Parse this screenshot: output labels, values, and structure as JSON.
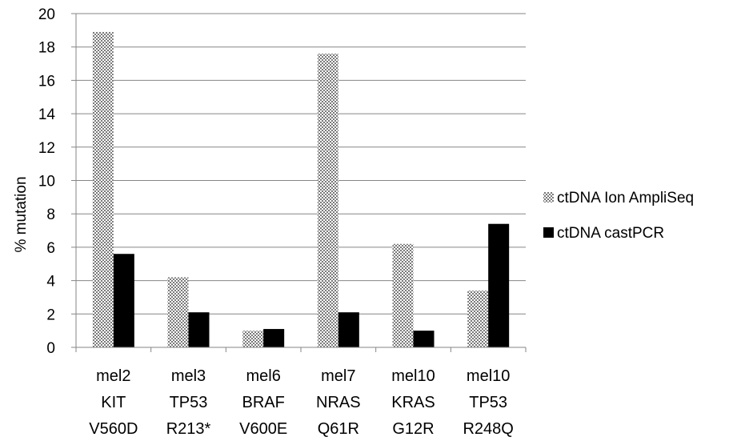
{
  "chart_data": {
    "type": "bar",
    "title": "",
    "xlabel": "",
    "ylabel": "% mutation",
    "ylim": [
      0,
      20
    ],
    "yticks": [
      0,
      2,
      4,
      6,
      8,
      10,
      12,
      14,
      16,
      18,
      20
    ],
    "grid": true,
    "legend_position": "right",
    "categories": [
      [
        "mel2",
        "KIT",
        "V560D"
      ],
      [
        "mel3",
        "TP53",
        "R213*"
      ],
      [
        "mel6",
        "BRAF",
        "V600E"
      ],
      [
        "mel7",
        "NRAS",
        "Q61R"
      ],
      [
        "mel10",
        "KRAS",
        "G12R"
      ],
      [
        "mel10",
        "TP53",
        "R248Q"
      ]
    ],
    "series": [
      {
        "name": "ctDNA Ion AmpliSeq",
        "fill": "pattern-checker",
        "values": [
          18.9,
          4.2,
          1.0,
          17.6,
          6.2,
          3.4
        ]
      },
      {
        "name": "ctDNA castPCR",
        "fill": "#000000",
        "values": [
          5.6,
          2.1,
          1.1,
          2.1,
          1.0,
          7.4
        ]
      }
    ]
  }
}
